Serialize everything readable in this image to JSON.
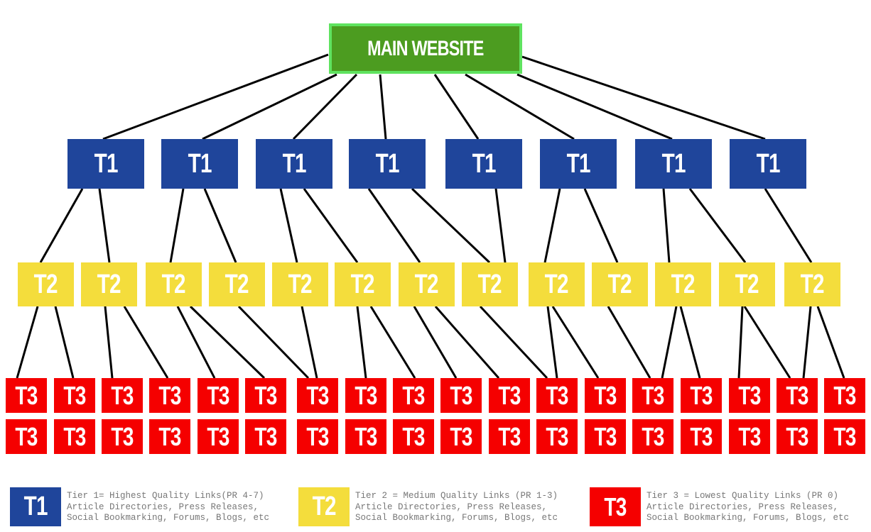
{
  "main_node": {
    "label": "MAIN WEBSITE",
    "color": "#4c9c20",
    "border": "#5fe35f"
  },
  "tier1": {
    "label": "T1",
    "count": 8,
    "color": "#1f459b"
  },
  "tier2": {
    "label": "T2",
    "count": 13,
    "color": "#f4dd3c"
  },
  "tier3": {
    "label": "T3",
    "count": 36,
    "color": "#f50000"
  },
  "legend": [
    {
      "badge": "T1",
      "line1": "Tier 1= Highest Quality Links(PR 4-7)",
      "line2": "Article Directories, Press Releases,",
      "line3": "Social Bookmarking, Forums, Blogs, etc"
    },
    {
      "badge": "T2",
      "line1": "Tier 2 = Medium Quality Links (PR 1-3)",
      "line2": "Article Directories, Press Releases,",
      "line3": "Social Bookmarking, Forums, Blogs, etc"
    },
    {
      "badge": "T3",
      "line1": "Tier 3 = Lowest Quality Links (PR 0)",
      "line2": "Article Directories, Press Releases,",
      "line3": "Social Bookmarking, Forums, Blogs, etc"
    }
  ]
}
